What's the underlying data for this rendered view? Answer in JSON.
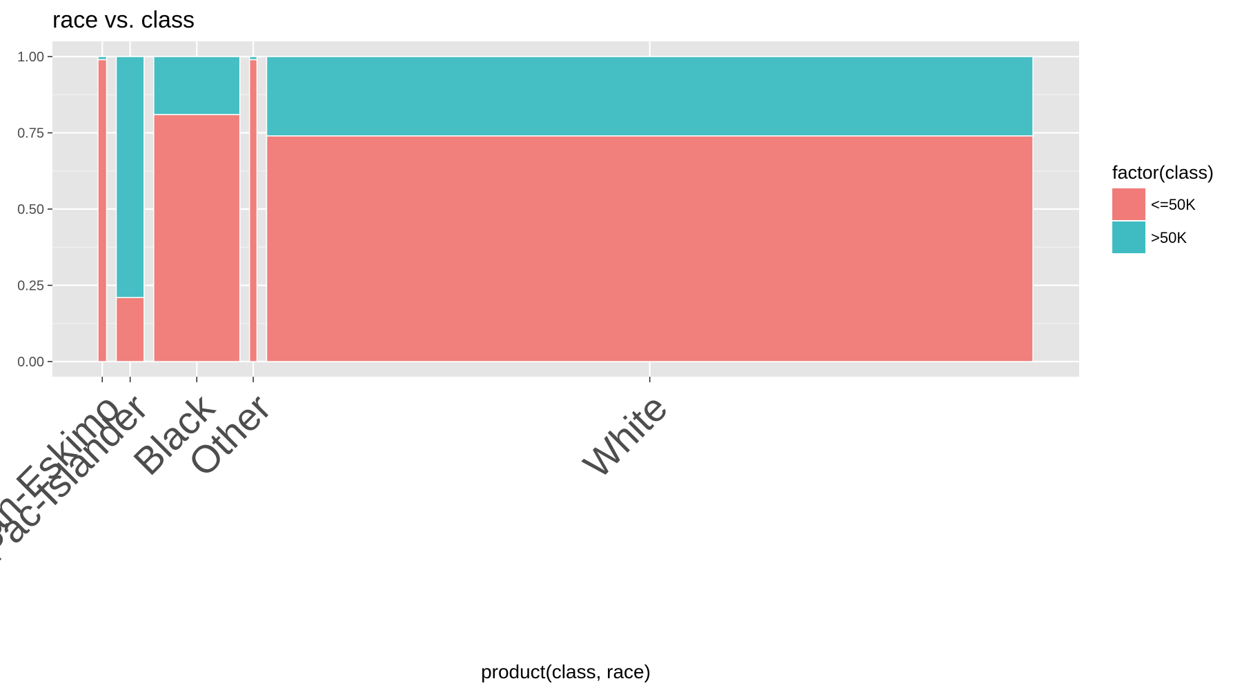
{
  "chart_data": {
    "type": "bar",
    "subtype": "mosaic",
    "title": "race vs. class",
    "xlabel": "product(class, race)",
    "ylabel": "",
    "ylim": [
      0,
      1
    ],
    "yticks": [
      "0.00",
      "0.25",
      "0.50",
      "0.75",
      "1.00"
    ],
    "categories": [
      "Amer-Indian-Eskimo",
      "Asian-Pac-Islander",
      "Black",
      "Other",
      "White"
    ],
    "category_width_share": [
      0.0096,
      0.031,
      0.096,
      0.0083,
      0.854
    ],
    "series": [
      {
        "name": "<=50K",
        "values": [
          0.99,
          0.21,
          0.81,
          0.99,
          0.74
        ]
      },
      {
        "name": ">50K",
        "values": [
          0.01,
          0.79,
          0.19,
          0.01,
          0.26
        ]
      }
    ],
    "colors": {
      "<=50K": "#F17B78",
      ">50K": "#3FBCC2"
    },
    "legend": {
      "title": "factor(class)",
      "position": "right"
    },
    "grid": true,
    "panel_background": "#E5E5E5"
  }
}
